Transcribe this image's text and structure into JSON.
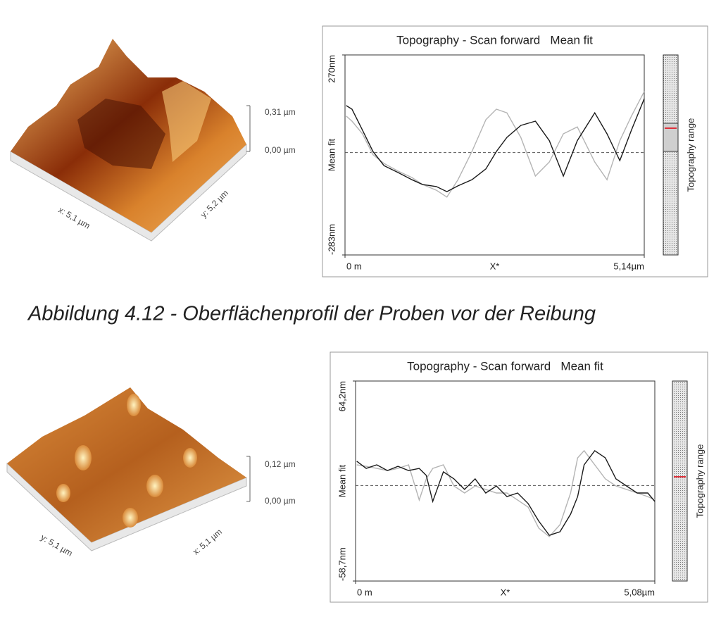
{
  "figures": [
    {
      "surface": {
        "z_labels": [
          "0,31 µm",
          "0,00 µm"
        ],
        "x_label": "x: 5,1 µm",
        "y_label": "y: 5,2 µm"
      }
    },
    {
      "surface": {
        "z_labels": [
          "0,12 µm",
          "0,00 µm"
        ],
        "x_label": "x: 5,1 µm",
        "y_label": "y: 5,1 µm"
      }
    }
  ],
  "caption": "Abbildung 4.12 - Oberflächenprofil der Proben vor der Reibung",
  "chart_data": [
    {
      "type": "line",
      "title": "Topography - Scan forward   Mean fit",
      "x_label": "X*",
      "y_label": "Mean fit",
      "colorbar_label": "Topography range",
      "xlim": [
        0,
        5.14
      ],
      "ylim": [
        -283,
        270
      ],
      "xticks": [
        {
          "value": 0,
          "label": "0 m"
        },
        {
          "value": 5.14,
          "label": "5,14µm"
        }
      ],
      "yticks": [
        {
          "value": 270,
          "label": "270nm"
        },
        {
          "value": -283,
          "label": "-283nm"
        }
      ],
      "mean_line": true,
      "x": [
        0.02,
        0.12,
        0.3,
        0.48,
        0.67,
        0.91,
        1.15,
        1.33,
        1.57,
        1.75,
        1.94,
        2.18,
        2.42,
        2.6,
        2.78,
        3.02,
        3.27,
        3.51,
        3.75,
        3.99,
        4.29,
        4.5,
        4.72,
        4.92,
        5.14
      ],
      "series": [
        {
          "color": "#b4b4b4",
          "values": [
            101,
            87,
            52,
            -6,
            -30,
            -51,
            -69,
            -88,
            -104,
            -123,
            -75,
            3,
            91,
            120,
            110,
            42,
            -65,
            -26,
            52,
            71,
            -26,
            -75,
            33,
            101,
            169
          ]
        },
        {
          "color": "#1a1a1a",
          "values": [
            130,
            120,
            62,
            3,
            -36,
            -55,
            -75,
            -88,
            -94,
            -108,
            -92,
            -75,
            -45,
            3,
            42,
            75,
            87,
            33,
            -65,
            33,
            110,
            52,
            -22,
            62,
            149
          ]
        }
      ]
    },
    {
      "type": "line",
      "title": "Topography - Scan forward   Mean fit",
      "x_label": "X*",
      "y_label": "Mean fit",
      "colorbar_label": "Topography range",
      "xlim": [
        0,
        5.08
      ],
      "ylim": [
        -58.7,
        64.2
      ],
      "xticks": [
        {
          "value": 0,
          "label": "0 m"
        },
        {
          "value": 5.08,
          "label": "5,08µm"
        }
      ],
      "yticks": [
        {
          "value": 64.2,
          "label": "64,2nm"
        },
        {
          "value": -58.7,
          "label": "-58,7nm"
        }
      ],
      "mean_line": true,
      "x": [
        0.02,
        0.18,
        0.36,
        0.54,
        0.72,
        0.9,
        1.08,
        1.2,
        1.31,
        1.49,
        1.67,
        1.85,
        2.03,
        2.21,
        2.39,
        2.57,
        2.75,
        2.93,
        3.11,
        3.29,
        3.47,
        3.65,
        3.77,
        3.88,
        4.06,
        4.24,
        4.42,
        4.6,
        4.78,
        4.96,
        5.08
      ],
      "series": [
        {
          "color": "#b4b4b4",
          "values": [
            12.7,
            11.8,
            10.5,
            9.2,
            10.5,
            12.7,
            -8.9,
            4.1,
            10.5,
            12.7,
            -0.3,
            -4.6,
            -0.3,
            -2.4,
            -4.6,
            -4.6,
            -8.9,
            -13.3,
            -26.2,
            -31.4,
            -24.1,
            -4.6,
            17.0,
            21.4,
            12.7,
            4.1,
            -0.3,
            -2.4,
            -4.6,
            -6.8,
            -8.9
          ]
        },
        {
          "color": "#1a1a1a",
          "values": [
            14.9,
            10.5,
            12.7,
            9.2,
            11.8,
            9.2,
            10.5,
            6.2,
            -9.8,
            8.4,
            4.1,
            -2.4,
            4.1,
            -4.6,
            -0.3,
            -6.8,
            -4.6,
            -11.1,
            -21.9,
            -30.6,
            -28.4,
            -17.6,
            -6.8,
            12.7,
            21.4,
            17.0,
            4.1,
            -0.3,
            -4.6,
            -4.6,
            -9.8
          ]
        }
      ]
    }
  ]
}
